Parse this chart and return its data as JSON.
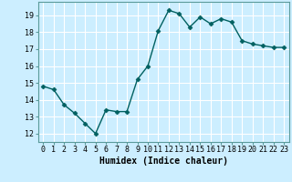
{
  "x": [
    0,
    1,
    2,
    3,
    4,
    5,
    6,
    7,
    8,
    9,
    10,
    11,
    12,
    13,
    14,
    15,
    16,
    17,
    18,
    19,
    20,
    21,
    22,
    23
  ],
  "y": [
    14.8,
    14.6,
    13.7,
    13.2,
    12.6,
    12.0,
    13.4,
    13.3,
    13.3,
    15.2,
    16.0,
    18.1,
    19.3,
    19.1,
    18.3,
    18.9,
    18.5,
    18.8,
    18.6,
    17.5,
    17.3,
    17.2,
    17.1,
    17.1
  ],
  "line_color": "#006060",
  "marker": "D",
  "markersize": 2.5,
  "linewidth": 1.0,
  "xlabel": "Humidex (Indice chaleur)",
  "xlabel_fontsize": 7,
  "xlim": [
    -0.5,
    23.5
  ],
  "ylim": [
    11.5,
    19.8
  ],
  "yticks": [
    12,
    13,
    14,
    15,
    16,
    17,
    18,
    19
  ],
  "xticks": [
    0,
    1,
    2,
    3,
    4,
    5,
    6,
    7,
    8,
    9,
    10,
    11,
    12,
    13,
    14,
    15,
    16,
    17,
    18,
    19,
    20,
    21,
    22,
    23
  ],
  "xtick_labels": [
    "0",
    "1",
    "2",
    "3",
    "4",
    "5",
    "6",
    "7",
    "8",
    "9",
    "10",
    "11",
    "12",
    "13",
    "14",
    "15",
    "16",
    "17",
    "18",
    "19",
    "20",
    "21",
    "22",
    "23"
  ],
  "background_color": "#cceeff",
  "grid_color": "#ffffff",
  "tick_fontsize": 6,
  "spine_color": "#5a9a9a"
}
